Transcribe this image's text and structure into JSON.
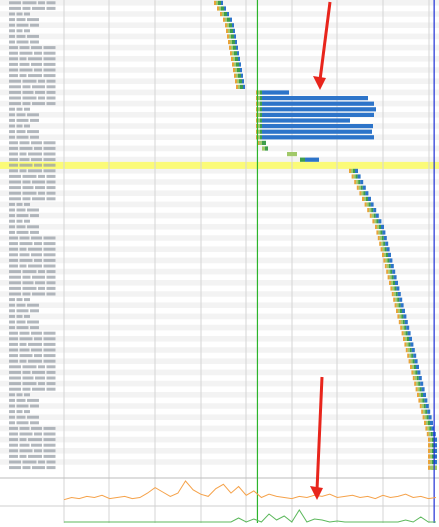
{
  "app": {
    "view": "network-waterfall"
  },
  "colors": {
    "label_text": "#9aa0a8",
    "row_stripe": "#f3f3f3",
    "grid_line": "#d6d6d6",
    "highlight_row": "#fbfb78",
    "dns": "#e8a33a",
    "connect": "#a1c96a",
    "ttfb": "#3f9e4d",
    "download": "#2d74c9",
    "dom_content_loaded_line": "#2cb52c",
    "onload_line": "#1f2fd6",
    "annotation_arrow": "#e8251c",
    "cpu_line": "#f5a24a",
    "bandwidth_line": "#5cb85c"
  },
  "icons": {
    "annotation_arrow_top": "arrow-down-icon",
    "annotation_arrow_bottom": "arrow-down-icon"
  },
  "waterfall": {
    "row_count": 84,
    "highlighted_row": 29,
    "markers": {
      "dom_content_loaded_fraction": 0.52,
      "onload_fraction": 0.995
    }
  },
  "performance_graph": {
    "cpu_series": [
      3,
      5,
      4,
      6,
      5,
      7,
      4,
      5,
      6,
      4,
      5,
      9,
      14,
      10,
      6,
      9,
      20,
      12,
      8,
      6,
      13,
      17,
      9,
      15,
      7,
      11,
      5,
      8,
      6,
      5,
      4,
      6,
      5,
      7,
      6,
      8,
      5,
      6,
      7,
      5,
      6,
      4,
      7,
      5,
      6,
      8,
      5,
      6,
      4,
      5
    ],
    "bandwidth_series": [
      0,
      0,
      0,
      0,
      0,
      0,
      0,
      0,
      0,
      0,
      0,
      0,
      0,
      0,
      0,
      0,
      0,
      0,
      0,
      0,
      0,
      0,
      0,
      4,
      0,
      3,
      0,
      8,
      2,
      6,
      0,
      12,
      0,
      3,
      2,
      0,
      1,
      0,
      0,
      0,
      0,
      0,
      0,
      0,
      0,
      2,
      0,
      5,
      0,
      0
    ]
  }
}
